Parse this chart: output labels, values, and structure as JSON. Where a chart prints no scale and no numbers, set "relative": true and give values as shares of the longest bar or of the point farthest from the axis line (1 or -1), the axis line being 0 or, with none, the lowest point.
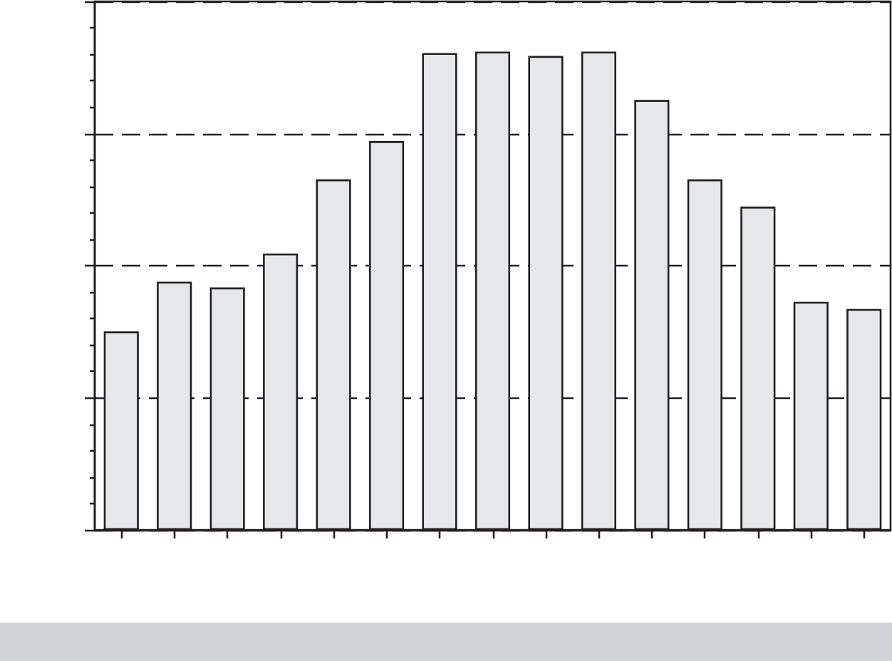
{
  "chart_data": {
    "type": "bar",
    "relative": true,
    "categories": [
      null,
      null,
      null,
      null,
      null,
      null,
      null,
      null,
      null,
      null,
      null,
      null,
      null,
      null,
      null
    ],
    "values": [
      0.415,
      0.519,
      0.507,
      0.578,
      0.733,
      0.813,
      0.997,
      1,
      0.991,
      1,
      0.899,
      0.733,
      0.676,
      0.477,
      0.462
    ],
    "color": "#e6e7e8",
    "grid": "y"
  }
}
